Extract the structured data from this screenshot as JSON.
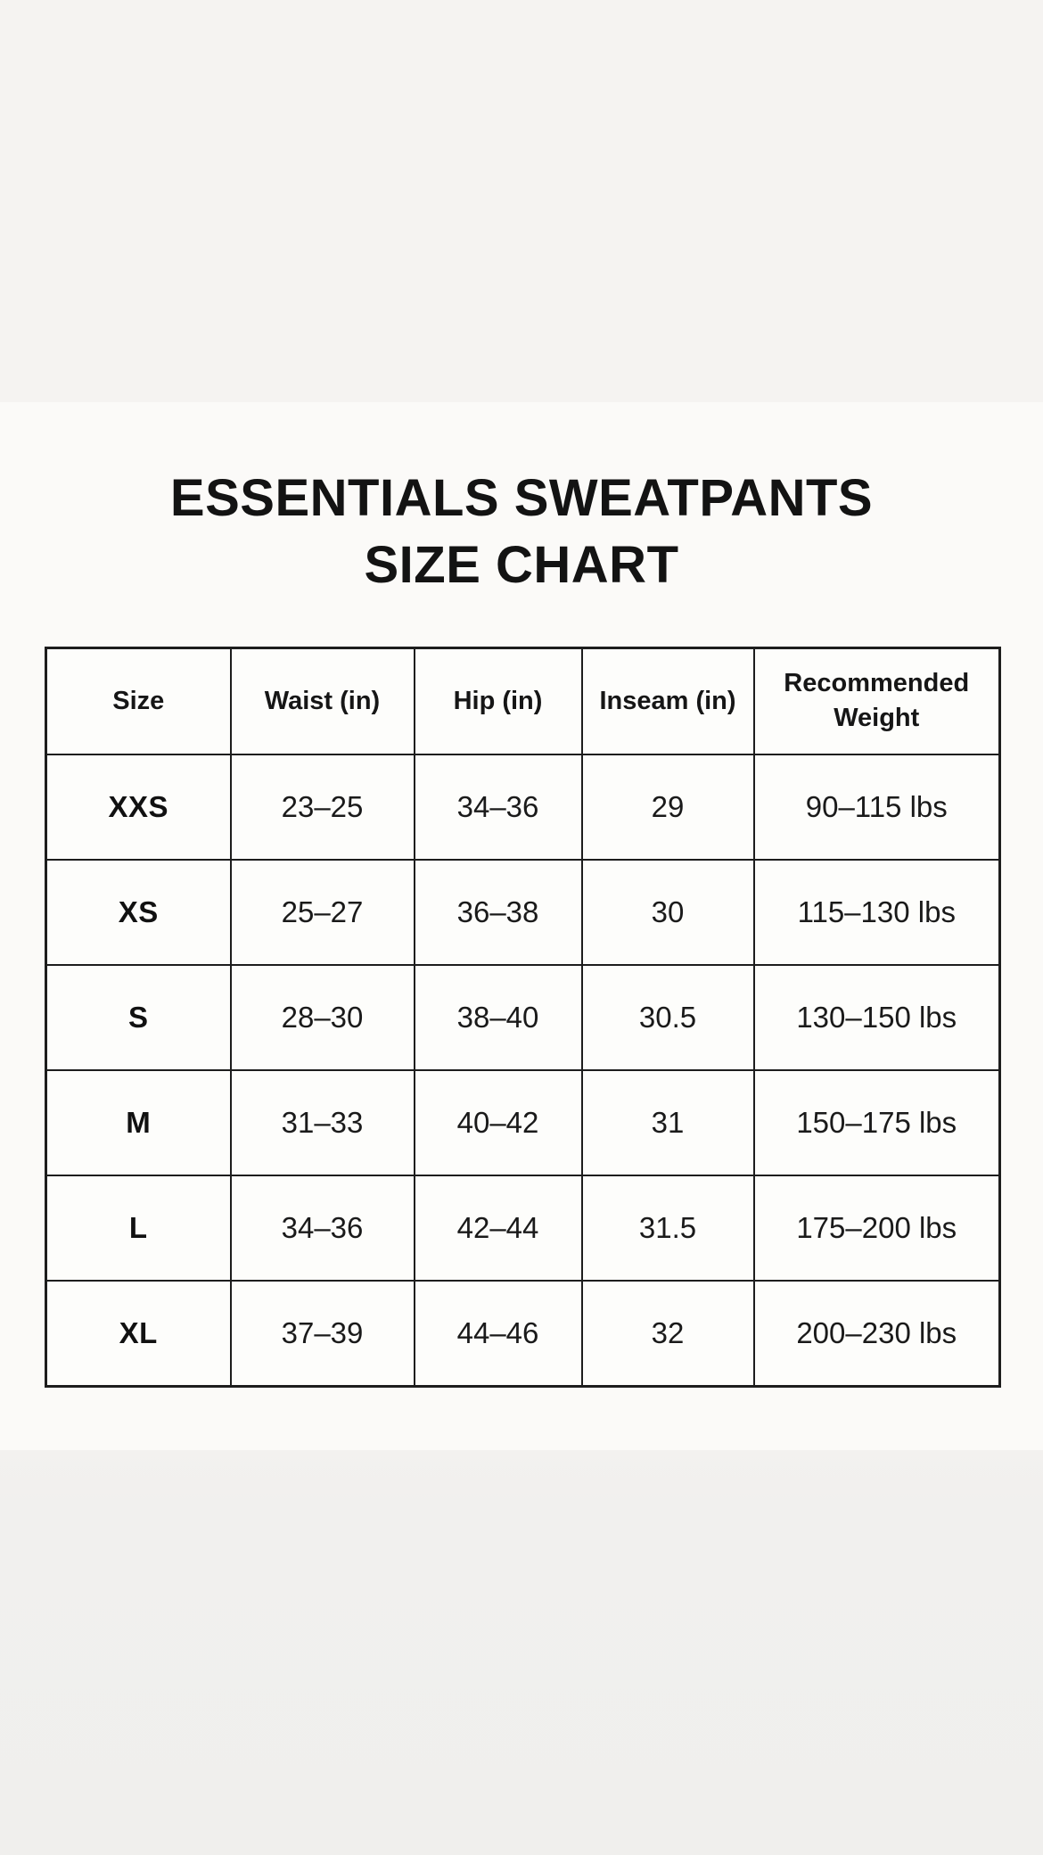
{
  "header": {
    "title_line1": "ESSENTIALS SWEATPANTS",
    "title_line2": "SIZE CHART"
  },
  "colors": {
    "band_top": "#f5f3f1",
    "band_middle": "#fbfaf8",
    "band_bottom": "#f1f0ee",
    "table_background": "#fdfdfb",
    "table_border": "#1d1d1d",
    "text": "#1a1a1a"
  },
  "chart_data": {
    "type": "table",
    "title": "ESSENTIALS SWEATPANTS SIZE CHART",
    "columns": [
      "Size",
      "Waist (in)",
      "Hip (in)",
      "Inseam (in)",
      "Recommended Weight"
    ],
    "rows": [
      [
        "XXS",
        "23–25",
        "34–36",
        "29",
        "90–115 lbs"
      ],
      [
        "XS",
        "25–27",
        "36–38",
        "30",
        "115–130 lbs"
      ],
      [
        "S",
        "28–30",
        "38–40",
        "30.5",
        "130–150 lbs"
      ],
      [
        "M",
        "31–33",
        "40–42",
        "31",
        "150–175 lbs"
      ],
      [
        "L",
        "34–36",
        "42–44",
        "31.5",
        "175–200 lbs"
      ],
      [
        "XL",
        "37–39",
        "44–46",
        "32",
        "200–230 lbs"
      ]
    ]
  }
}
